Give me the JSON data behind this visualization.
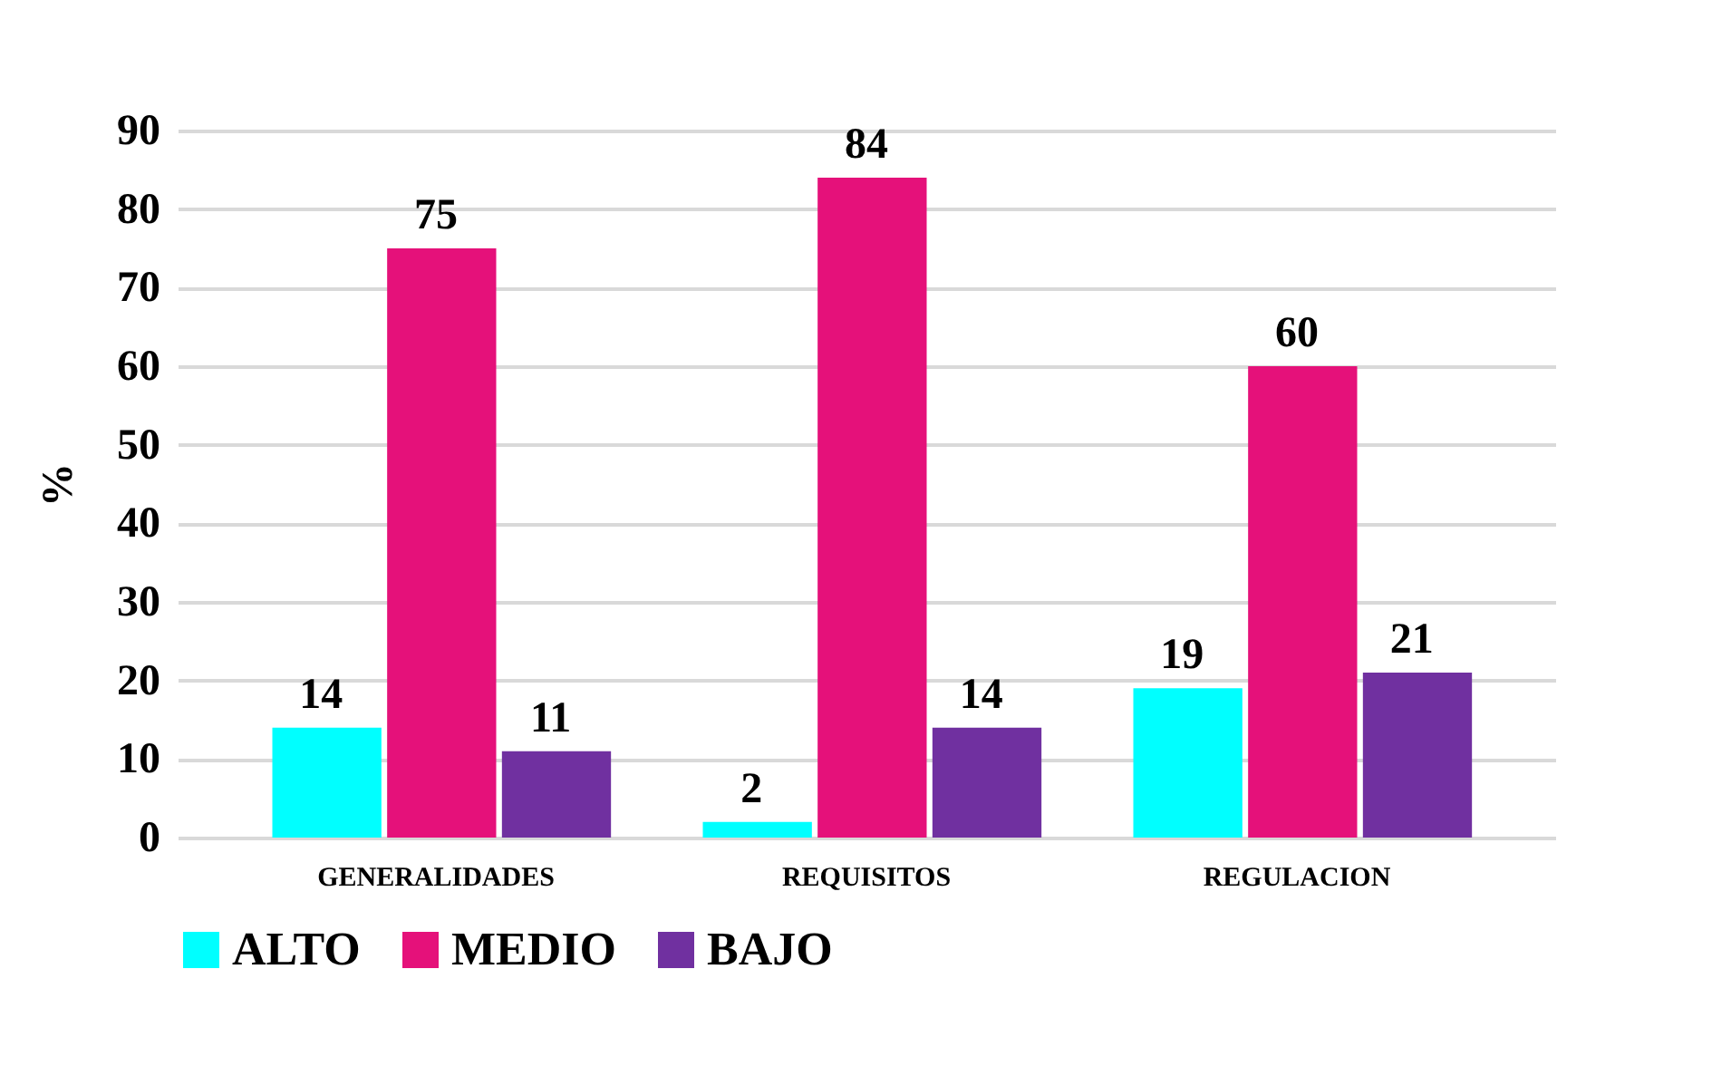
{
  "chart_data": {
    "type": "bar",
    "ylabel": "%",
    "categories": [
      "GENERALIDADES",
      "REQUISITOS",
      "REGULACION"
    ],
    "series": [
      {
        "name": "ALTO",
        "color": "#00ffff",
        "values": [
          14,
          2,
          19
        ]
      },
      {
        "name": "MEDIO",
        "color": "#e5117a",
        "values": [
          75,
          84,
          60
        ]
      },
      {
        "name": "BAJO",
        "color": "#7030a0",
        "values": [
          11,
          14,
          21
        ]
      }
    ],
    "ylim": [
      0,
      90
    ],
    "yticks": [
      0,
      10,
      20,
      30,
      40,
      50,
      60,
      70,
      80,
      90
    ],
    "grid": "y",
    "legend": "bottom",
    "data_labels": true
  }
}
